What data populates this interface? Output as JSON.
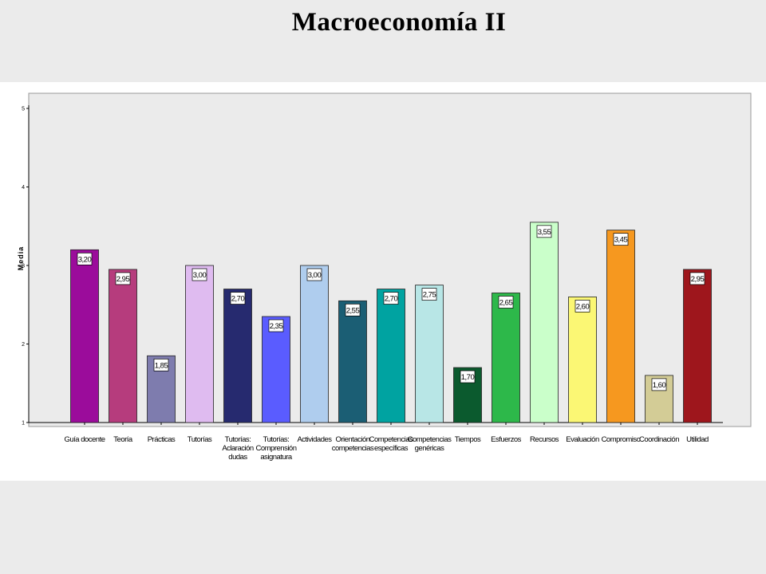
{
  "slide": {
    "title": "Macroeconomía  II"
  },
  "chart_data": {
    "type": "bar",
    "ylabel": "Media",
    "ylim": [
      1,
      5
    ],
    "yticks": [
      "1",
      "2",
      "3",
      "4",
      "5"
    ],
    "grid": false,
    "categories": [
      [
        "Guía docente"
      ],
      [
        "Teoría"
      ],
      [
        "Prácticas"
      ],
      [
        "Tutorías"
      ],
      [
        "Tutorías:",
        "Aclaración",
        "dudas"
      ],
      [
        "Tutorías:",
        "Comprensión",
        "asignatura"
      ],
      [
        "Actividades"
      ],
      [
        "Orientación",
        "competencias"
      ],
      [
        "Competencias",
        "específicas"
      ],
      [
        "Competencias",
        "genéricas"
      ],
      [
        "Tiempos"
      ],
      [
        "Esfuerzos"
      ],
      [
        "Recursos"
      ],
      [
        "Evaluación"
      ],
      [
        "Compromiso"
      ],
      [
        "Coordinación"
      ],
      [
        "Utilidad"
      ]
    ],
    "values": [
      3.2,
      2.95,
      1.85,
      3.0,
      2.7,
      2.35,
      3.0,
      2.55,
      2.7,
      2.75,
      1.7,
      2.65,
      3.55,
      2.6,
      3.45,
      1.6,
      2.95
    ],
    "value_labels": [
      "3,20",
      "2,95",
      "1,85",
      "3,00",
      "2,70",
      "2,35",
      "3,00",
      "2,55",
      "2,70",
      "2,75",
      "1,70",
      "2,65",
      "3,55",
      "2,60",
      "3,45",
      "1,60",
      "2,95"
    ],
    "colors": [
      "#9b0c9b",
      "#b63c7d",
      "#7e7cae",
      "#dfbbf0",
      "#262a6f",
      "#5a5cff",
      "#afcdee",
      "#1b5e74",
      "#00a3a1",
      "#b8e6e6",
      "#0b5a2e",
      "#2db84a",
      "#caffca",
      "#fbf774",
      "#f6981f",
      "#d3cc96",
      "#9e161c"
    ]
  }
}
